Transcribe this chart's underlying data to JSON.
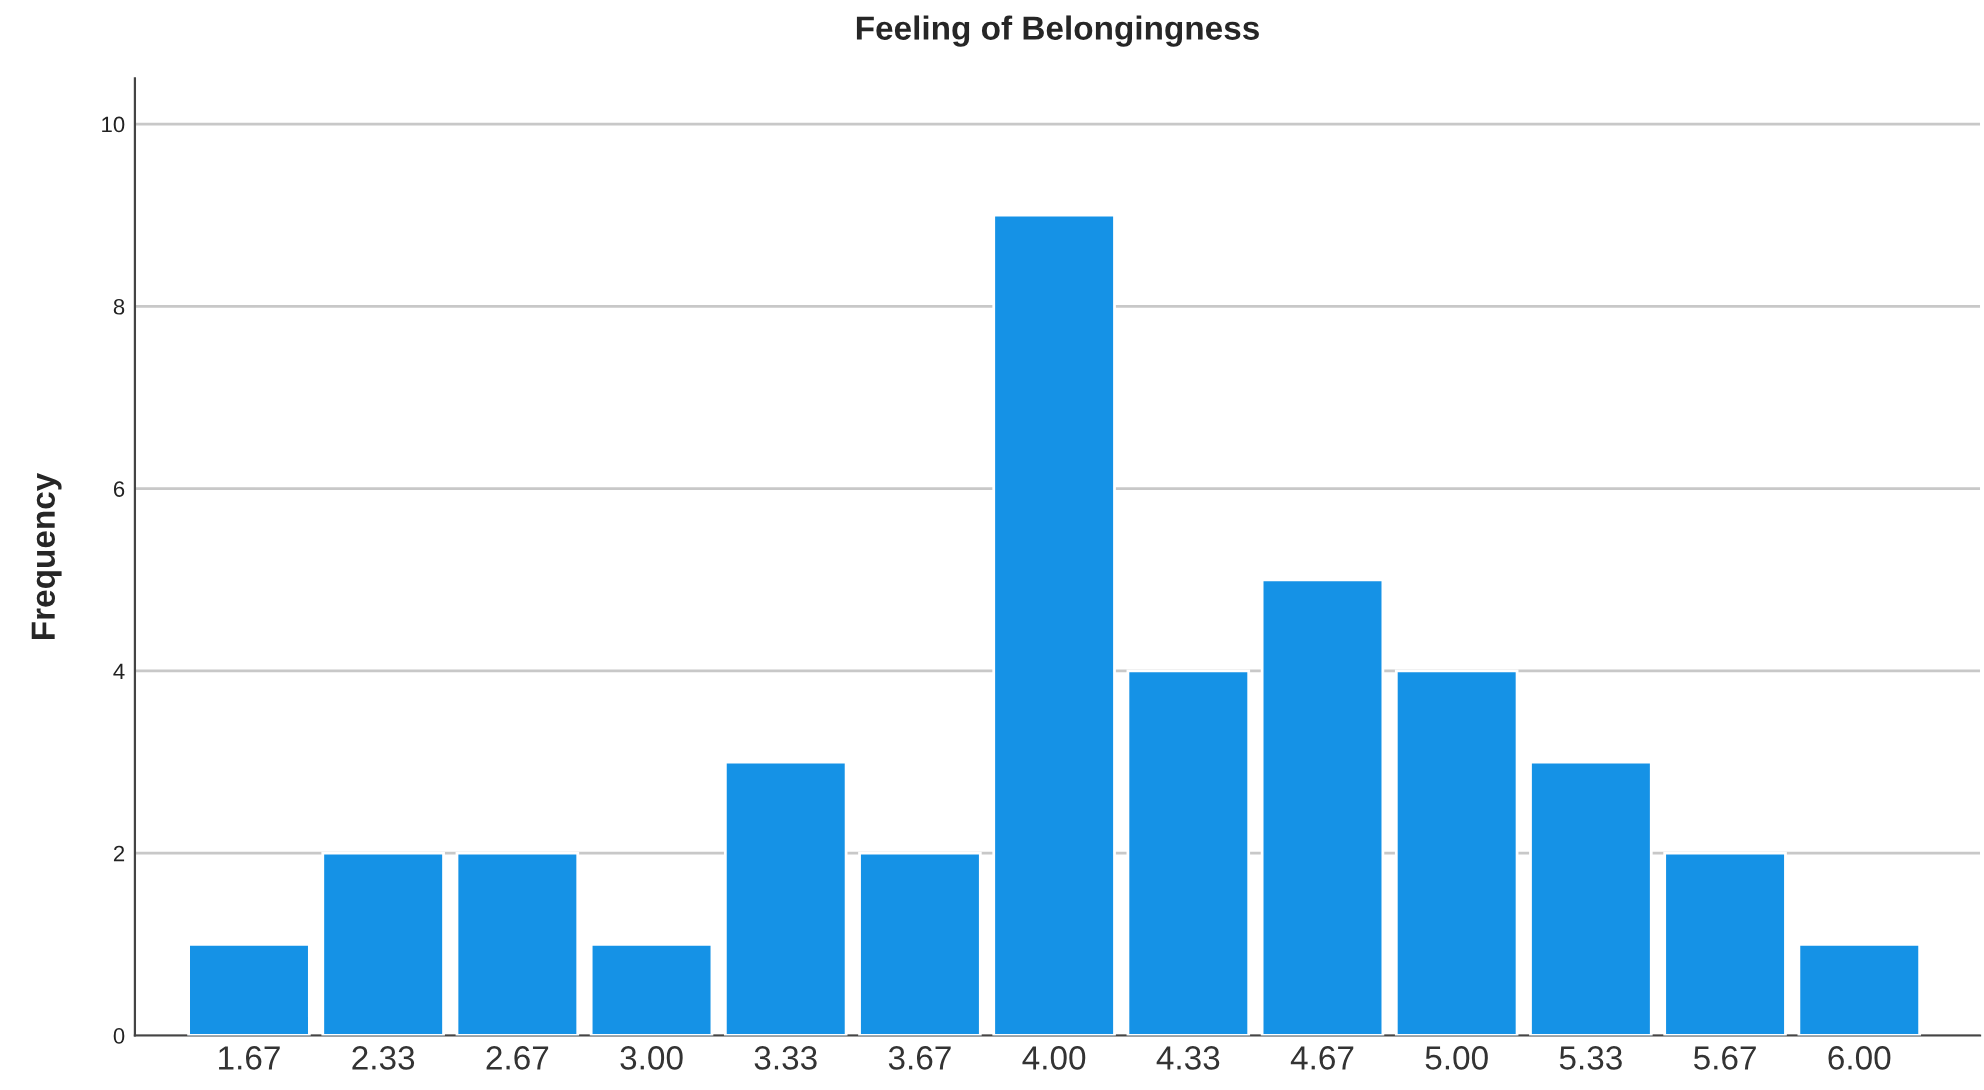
{
  "chart_data": {
    "type": "bar",
    "title": "Feeling of Belongingness",
    "ylabel": "Frequency",
    "categories": [
      "1.67",
      "2.33",
      "2.67",
      "3.00",
      "3.33",
      "3.67",
      "4.00",
      "4.33",
      "4.67",
      "5.00",
      "5.33",
      "5.67",
      "6.00"
    ],
    "values": [
      1,
      2,
      2,
      1,
      3,
      2,
      9,
      4,
      5,
      4,
      3,
      2,
      1
    ],
    "color": "#1592e6",
    "ylim": [
      0,
      10.5
    ],
    "yticks": [
      0,
      2,
      4,
      6,
      8,
      10
    ],
    "grid": "y"
  }
}
